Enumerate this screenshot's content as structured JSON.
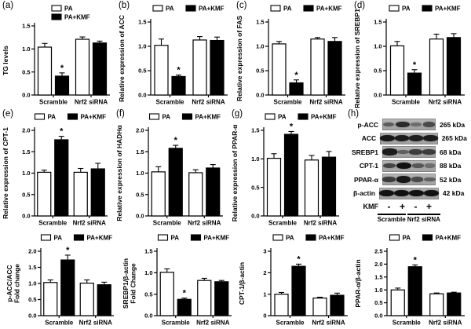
{
  "figure_colors": {
    "background": "#ffffff",
    "bar_pa": "#ffffff",
    "bar_kmf": "#000000",
    "axis": "#000000"
  },
  "legend": {
    "pa_label": "PA",
    "kmf_label": "PA+KMF"
  },
  "chart_data": [
    {
      "type": "bar",
      "panel": "(a)",
      "ylabel": "TG levels",
      "ylabel_lines": [
        "TG levels"
      ],
      "ylim": [
        0,
        1.5
      ],
      "yticks": [
        "0.0",
        "0.5",
        "1.0",
        "1.5"
      ],
      "legend_layout": "stacked",
      "categories": [
        "Scramble",
        "Nrf2 siRNA"
      ],
      "series": [
        {
          "name": "PA",
          "fill": "#ffffff",
          "values": [
            1.04,
            1.21
          ],
          "errors": [
            0.08,
            0.05
          ]
        },
        {
          "name": "PA+KMF",
          "fill": "#000000",
          "values": [
            0.41,
            1.13
          ],
          "errors": [
            0.07,
            0.04
          ]
        }
      ],
      "significance": [
        {
          "category": "Scramble",
          "series": "PA+KMF",
          "label": "*"
        }
      ]
    },
    {
      "type": "bar",
      "panel": "(b)",
      "ylabel": "Relative expression of ACC",
      "ylabel_lines": [
        "Relative expression of ACC"
      ],
      "ylim": [
        0,
        1.5
      ],
      "yticks": [
        "0.0",
        "0.5",
        "1.0",
        "1.5"
      ],
      "legend_layout": "row",
      "categories": [
        "Scramble",
        "Nrf2 siRNA"
      ],
      "series": [
        {
          "name": "PA",
          "fill": "#ffffff",
          "values": [
            1.02,
            1.13
          ],
          "errors": [
            0.13,
            0.07
          ]
        },
        {
          "name": "PA+KMF",
          "fill": "#000000",
          "values": [
            0.38,
            1.12
          ],
          "errors": [
            0.03,
            0.07
          ]
        }
      ],
      "significance": [
        {
          "category": "Scramble",
          "series": "PA+KMF",
          "label": "*"
        }
      ]
    },
    {
      "type": "bar",
      "panel": "(c)",
      "ylabel": "Relative expression of FAS",
      "ylabel_lines": [
        "Relative expression of FAS"
      ],
      "ylim": [
        0,
        1.5
      ],
      "yticks": [
        "0.0",
        "0.5",
        "1.0",
        "1.5"
      ],
      "legend_layout": "row",
      "categories": [
        "Scramble",
        "Nrf2 siRNA"
      ],
      "series": [
        {
          "name": "PA",
          "fill": "#ffffff",
          "values": [
            1.05,
            1.15
          ],
          "errors": [
            0.05,
            0.03
          ]
        },
        {
          "name": "PA+KMF",
          "fill": "#000000",
          "values": [
            0.25,
            1.1
          ],
          "errors": [
            0.06,
            0.08
          ]
        }
      ],
      "significance": [
        {
          "category": "Scramble",
          "series": "PA+KMF",
          "label": "*"
        }
      ]
    },
    {
      "type": "bar",
      "panel": "(d)",
      "ylabel": "Relative expression of SREBP1",
      "ylabel_lines": [
        "Relative expression of SREBP1"
      ],
      "ylim": [
        0,
        1.5
      ],
      "yticks": [
        "0.0",
        "0.5",
        "1.0",
        "1.5"
      ],
      "legend_layout": "row",
      "categories": [
        "Scramble",
        "Nrf2 siRNA"
      ],
      "series": [
        {
          "name": "PA",
          "fill": "#ffffff",
          "values": [
            1.01,
            1.15
          ],
          "errors": [
            0.09,
            0.1
          ]
        },
        {
          "name": "PA+KMF",
          "fill": "#000000",
          "values": [
            0.45,
            1.18
          ],
          "errors": [
            0.07,
            0.08
          ]
        }
      ],
      "significance": [
        {
          "category": "Scramble",
          "series": "PA+KMF",
          "label": "*"
        }
      ]
    },
    {
      "type": "bar",
      "panel": "(e)",
      "ylabel": "Relative expression of CPT-1",
      "ylabel_lines": [
        "Relative expression of CPT-1"
      ],
      "ylim": [
        0,
        2.0
      ],
      "yticks": [
        "0.0",
        "0.5",
        "1.0",
        "1.5",
        "2.0"
      ],
      "legend_layout": "row",
      "categories": [
        "Scramble",
        "Nrf2 siRNA"
      ],
      "series": [
        {
          "name": "PA",
          "fill": "#ffffff",
          "values": [
            1.02,
            1.02
          ],
          "errors": [
            0.05,
            0.09
          ]
        },
        {
          "name": "PA+KMF",
          "fill": "#000000",
          "values": [
            1.78,
            1.1
          ],
          "errors": [
            0.08,
            0.13
          ]
        }
      ],
      "significance": [
        {
          "category": "Scramble",
          "series": "PA+KMF",
          "label": "*"
        }
      ]
    },
    {
      "type": "bar",
      "panel": "(f)",
      "ylabel": "Relative expression of HADHα",
      "ylabel_lines": [
        "Relative expression of HADHα"
      ],
      "ylim": [
        0,
        2.0
      ],
      "yticks": [
        "0.0",
        "0.5",
        "1.0",
        "1.5",
        "2.0"
      ],
      "legend_layout": "row",
      "categories": [
        "Scramble",
        "Nrf2 siRNA"
      ],
      "series": [
        {
          "name": "PA",
          "fill": "#ffffff",
          "values": [
            1.03,
            1.01
          ],
          "errors": [
            0.12,
            0.07
          ]
        },
        {
          "name": "PA+KMF",
          "fill": "#000000",
          "values": [
            1.58,
            1.12
          ],
          "errors": [
            0.07,
            0.08
          ]
        }
      ],
      "significance": [
        {
          "category": "Scramble",
          "series": "PA+KMF",
          "label": "*"
        }
      ]
    },
    {
      "type": "bar",
      "panel": "(g)",
      "ylabel": "Relative expression of PPAR-α",
      "ylabel_lines": [
        "Relative expression of PPAR-α"
      ],
      "ylim": [
        0,
        1.5
      ],
      "yticks": [
        "0.0",
        "0.5",
        "1.0",
        "1.5"
      ],
      "legend_layout": "row",
      "categories": [
        "Scramble",
        "Nrf2 siRNA"
      ],
      "series": [
        {
          "name": "PA",
          "fill": "#ffffff",
          "values": [
            1.01,
            0.98
          ],
          "errors": [
            0.08,
            0.08
          ]
        },
        {
          "name": "PA+KMF",
          "fill": "#000000",
          "values": [
            1.43,
            1.03
          ],
          "errors": [
            0.05,
            0.1
          ]
        }
      ],
      "significance": [
        {
          "category": "Scramble",
          "series": "PA+KMF",
          "label": "*"
        }
      ]
    },
    {
      "type": "bar",
      "panel": "",
      "ylabel": "p-ACC/ACC Fold change",
      "ylabel_lines": [
        "p-ACC/ACC",
        "Fold change"
      ],
      "ylim": [
        0,
        2.0
      ],
      "yticks": [
        "0.0",
        "0.5",
        "1.0",
        "1.5",
        "2.0"
      ],
      "legend_layout": "row",
      "categories": [
        "Scramble",
        "Nrf2 siRNA"
      ],
      "series": [
        {
          "name": "PA",
          "fill": "#ffffff",
          "values": [
            1.03,
            1.01
          ],
          "errors": [
            0.08,
            0.1
          ]
        },
        {
          "name": "PA+KMF",
          "fill": "#000000",
          "values": [
            1.73,
            0.96
          ],
          "errors": [
            0.15,
            0.08
          ]
        }
      ],
      "significance": [
        {
          "category": "Scramble",
          "series": "PA+KMF",
          "label": "*"
        }
      ]
    },
    {
      "type": "bar",
      "panel": "",
      "ylabel": "SREBP1/β-actin Fold Change",
      "ylabel_lines": [
        "SREBP1/β-actin",
        "Fold Change"
      ],
      "ylim": [
        0,
        1.5
      ],
      "yticks": [
        "0.0",
        "0.5",
        "1.0",
        "1.5"
      ],
      "legend_layout": "row",
      "categories": [
        "Scramble",
        "Nrf2 siRNA"
      ],
      "series": [
        {
          "name": "PA",
          "fill": "#ffffff",
          "values": [
            1.01,
            0.82
          ],
          "errors": [
            0.08,
            0.05
          ]
        },
        {
          "name": "PA+KMF",
          "fill": "#000000",
          "values": [
            0.38,
            0.79
          ],
          "errors": [
            0.03,
            0.03
          ]
        }
      ],
      "significance": [
        {
          "category": "Scramble",
          "series": "PA+KMF",
          "label": "*"
        }
      ]
    },
    {
      "type": "bar",
      "panel": "",
      "ylabel": "CPT-1/β-actin",
      "ylabel_lines": [
        "CPT-1/β-actin"
      ],
      "ylim": [
        0,
        3
      ],
      "yticks": [
        "0",
        "1",
        "2",
        "3"
      ],
      "legend_layout": "row",
      "categories": [
        "Scramble",
        "Nrf2 siRNA"
      ],
      "series": [
        {
          "name": "PA",
          "fill": "#ffffff",
          "values": [
            1.0,
            0.82
          ],
          "errors": [
            0.08,
            0.04
          ]
        },
        {
          "name": "PA+KMF",
          "fill": "#000000",
          "values": [
            2.3,
            0.95
          ],
          "errors": [
            0.1,
            0.1
          ]
        }
      ],
      "significance": [
        {
          "category": "Scramble",
          "series": "PA+KMF",
          "label": "*"
        }
      ]
    },
    {
      "type": "bar",
      "panel": "",
      "ylabel": "PPAR-α/β-actin",
      "ylabel_lines": [
        "PPAR-α/β-actin"
      ],
      "ylim": [
        0,
        2.5
      ],
      "yticks": [
        "0.0",
        "0.5",
        "1.0",
        "1.5",
        "2.0",
        "2.5"
      ],
      "legend_layout": "row",
      "categories": [
        "Scramble",
        "Nrf2 siRNA"
      ],
      "series": [
        {
          "name": "PA",
          "fill": "#ffffff",
          "values": [
            1.0,
            0.85
          ],
          "errors": [
            0.07,
            0.03
          ]
        },
        {
          "name": "PA+KMF",
          "fill": "#000000",
          "values": [
            1.9,
            0.88
          ],
          "errors": [
            0.07,
            0.03
          ]
        }
      ],
      "significance": [
        {
          "category": "Scramble",
          "series": "PA+KMF",
          "label": "*"
        }
      ]
    }
  ],
  "blot": {
    "panel": "(h)",
    "rows": [
      {
        "protein": "p-ACC",
        "kda": "265 kDa",
        "bands": [
          0.45,
          0.82,
          0.32,
          0.58
        ]
      },
      {
        "protein": "ACC",
        "kda": "265 kDa",
        "bands": [
          0.95,
          0.92,
          0.9,
          0.92
        ]
      },
      {
        "protein": "SREBP1",
        "kda": "68 kDa",
        "bands": [
          0.92,
          0.42,
          0.68,
          0.68
        ]
      },
      {
        "protein": "CPT-1",
        "kda": "88 kDa",
        "bands": [
          0.62,
          1.0,
          0.48,
          0.32
        ]
      },
      {
        "protein": "PPAR-α",
        "kda": "52 kDa",
        "bands": [
          0.68,
          0.95,
          0.58,
          0.42
        ]
      },
      {
        "protein": "β-actin",
        "kda": "42 kDa",
        "bands": [
          1.0,
          1.0,
          1.0,
          1.0
        ]
      }
    ],
    "treatment_label": "KMF",
    "treatments": [
      "-",
      "+",
      "-",
      "+"
    ],
    "groups": [
      "Scramble",
      "Nrf2 siRNA"
    ]
  }
}
